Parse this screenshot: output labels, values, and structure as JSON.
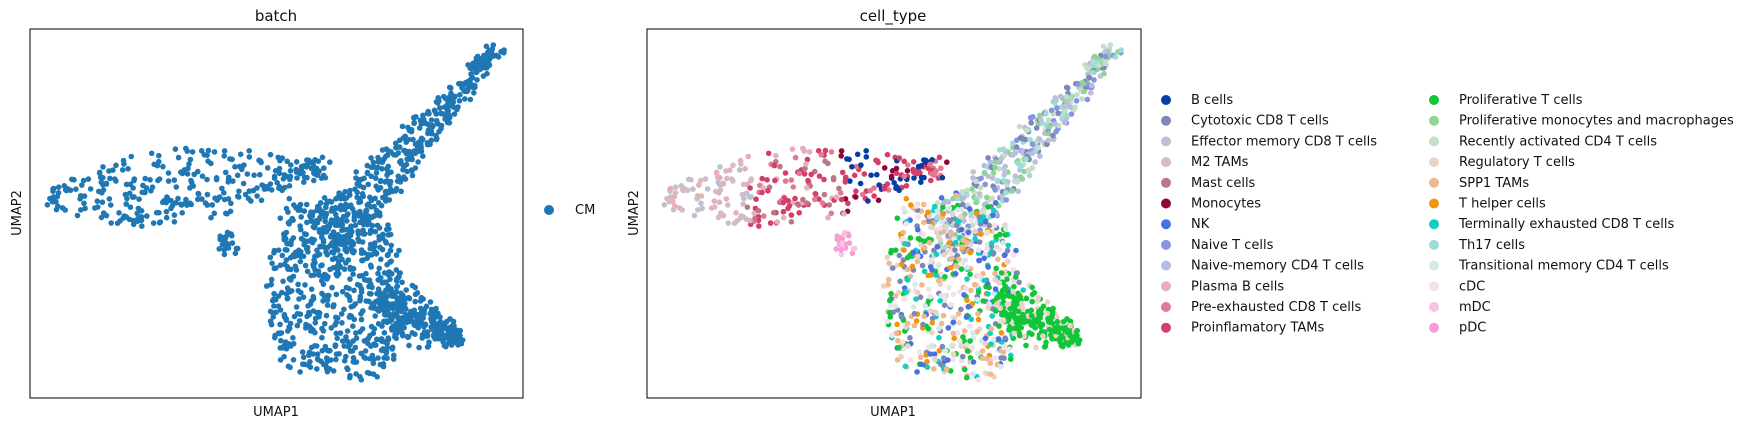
{
  "chart_data": [
    {
      "type": "scatter",
      "title": "batch",
      "xlabel": "UMAP1",
      "ylabel": "UMAP2",
      "grid": false,
      "legend_placement": "right",
      "series": [
        {
          "name": "CM",
          "color": "#1f77b4"
        }
      ]
    },
    {
      "type": "scatter",
      "title": "cell_type",
      "xlabel": "UMAP1",
      "ylabel": "UMAP2",
      "grid": false,
      "legend_placement": "right",
      "series": [
        {
          "name": "B cells",
          "color": "#023fa5"
        },
        {
          "name": "Cytotoxic CD8 T cells",
          "color": "#7d87b9"
        },
        {
          "name": "Effector memory CD8 T cells",
          "color": "#bec1d4"
        },
        {
          "name": "M2 TAMs",
          "color": "#d6bcc0"
        },
        {
          "name": "Mast cells",
          "color": "#bb7784"
        },
        {
          "name": "Monocytes",
          "color": "#8e063b"
        },
        {
          "name": "NK",
          "color": "#4a6fe3"
        },
        {
          "name": "Naive T cells",
          "color": "#8595e1"
        },
        {
          "name": "Naive-memory CD4 T cells",
          "color": "#b5bbe3"
        },
        {
          "name": "Plasma B cells",
          "color": "#e6afb9"
        },
        {
          "name": "Pre-exhausted CD8 T cells",
          "color": "#e07b91"
        },
        {
          "name": "Proinflamatory TAMs",
          "color": "#d33f6a"
        },
        {
          "name": "Proliferative T cells",
          "color": "#11c638"
        },
        {
          "name": "Proliferative monocytes and macrophages",
          "color": "#8dd593"
        },
        {
          "name": "Recently activated CD4 T cells",
          "color": "#c6dec7"
        },
        {
          "name": "Regulatory T cells",
          "color": "#ead3c6"
        },
        {
          "name": "SPP1 TAMs",
          "color": "#f0b98d"
        },
        {
          "name": "T helper cells",
          "color": "#ef9708"
        },
        {
          "name": "Terminally exhausted CD8 T cells",
          "color": "#0fcfc0"
        },
        {
          "name": "Th17 cells",
          "color": "#9cded6"
        },
        {
          "name": "Transitional memory CD4 T cells",
          "color": "#d5eae7"
        },
        {
          "name": "cDC",
          "color": "#f3e1eb"
        },
        {
          "name": "mDC",
          "color": "#f6c4e1"
        },
        {
          "name": "pDC",
          "color": "#f79cd4"
        }
      ]
    }
  ]
}
